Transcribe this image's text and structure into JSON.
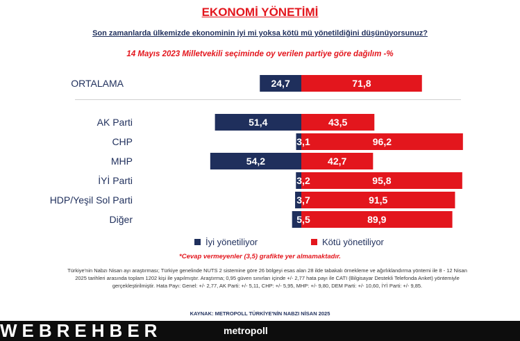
{
  "header": {
    "title": "EKONOMİ YÖNETİMİ",
    "question": "Son zamanlarda ülkemizde ekonominin iyi mi yoksa kötü mü yönetildiğini düşünüyorsunuz?",
    "subtitle": "14 Mayıs 2023 Milletvekili seçiminde oy verilen partiye göre dağılım -%"
  },
  "colors": {
    "iyi": "#1f2f5c",
    "kotu": "#e3161d"
  },
  "chart_data": {
    "type": "bar",
    "orientation": "horizontal-diverging",
    "categories": [
      "ORTALAMA",
      "AK Parti",
      "CHP",
      "MHP",
      "İYİ Parti",
      "HDP/Yeşil Sol Parti",
      "Diğer"
    ],
    "series": [
      {
        "name": "İyi yönetiliyor",
        "values": [
          24.7,
          51.4,
          3.1,
          54.2,
          3.2,
          3.7,
          5.5
        ]
      },
      {
        "name": "Kötü yönetiliyor",
        "values": [
          71.8,
          43.5,
          96.2,
          42.7,
          95.8,
          91.5,
          89.9
        ]
      }
    ],
    "value_labels": {
      "iyi": [
        "24,7",
        "51,4",
        "3,1",
        "54,2",
        "3,2",
        "3,7",
        "5,5"
      ],
      "kotu": [
        "71,8",
        "43,5",
        "96,2",
        "42,7",
        "95,8",
        "91,5",
        "89,9"
      ]
    },
    "legend_position": "bottom",
    "grid": false
  },
  "legend": {
    "iyi_label": "İyi yönetiliyor",
    "kotu_label": "Kötü yönetiliyor"
  },
  "note": "*Cevap vermeyenler (3,5) grafikte yer almamaktadır.",
  "methodology": "Türkiye'nin Nabzı Nisan ayı araştırması; Türkiye genelinde NUTS 2 sistemine göre 26 bölgeyi esas alan 28 ilde tabakalı örnekleme ve ağırlıklandırma yöntemi ile 8 - 12 Nisan 2025 tarihleri arasında toplam 1202 kişi ile yapılmıştır. Araştırma; 0,95 güven sınırları içinde +/- 2,77 hata payı ile CATI (Bilgisayar Destekli Telefonda Anket) yöntemiyle gerçekleştirilmiştir. Hata Payı: Genel: +/- 2,77, AK Parti: +/- 5,11, CHP: +/- 5,95, MHP: +/- 9,80, DEM Parti: +/- 10,60, İYİ Parti: +/- 9,85.",
  "source": "KAYNAK: METROPOLL TÜRKİYE'NİN NABZI NİSAN 2025",
  "footer": {
    "watermark": "WEBREHBER",
    "brand": "metropoll"
  }
}
